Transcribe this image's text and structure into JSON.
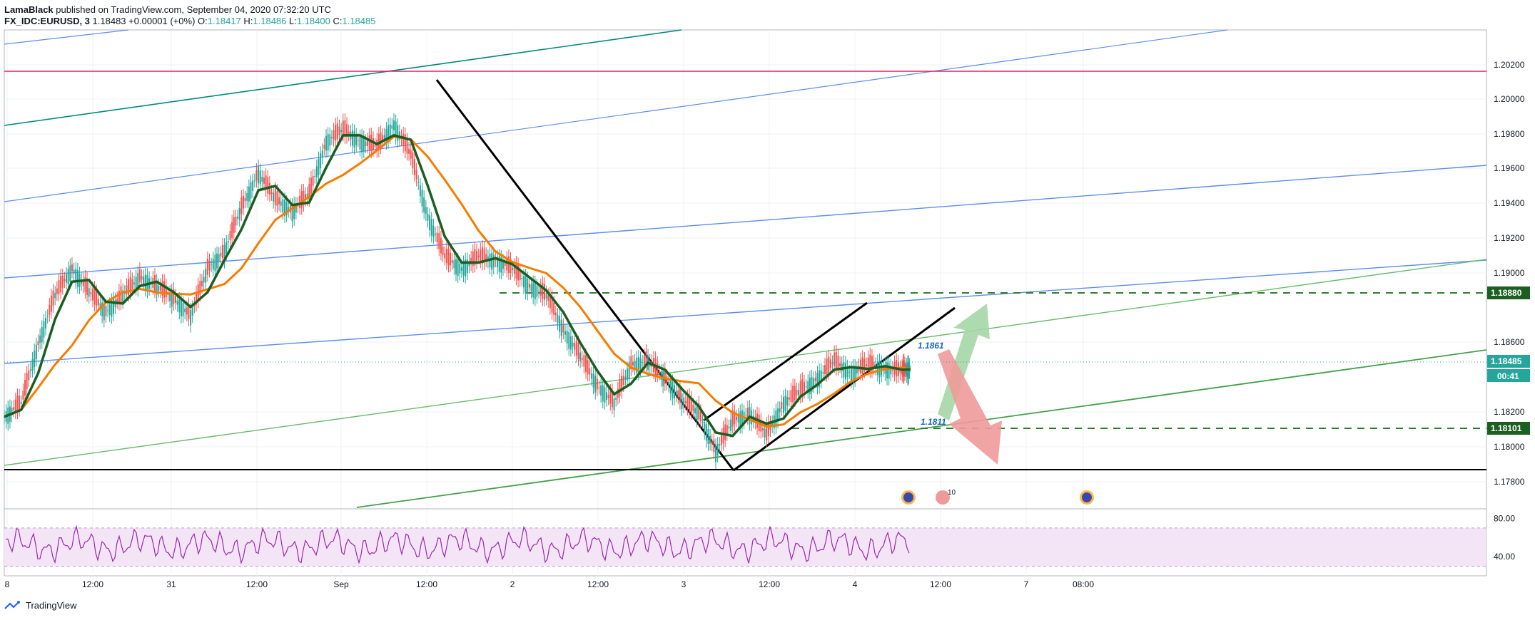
{
  "header": {
    "author": "LamaBlack",
    "published": " published on TradingView.com, September 04, 2020 07:32:20 UTC"
  },
  "ohlc": {
    "symbol": "FX_IDC:EURUSD, 3",
    "last": "1.18483",
    "change": "+0.00001 (+0%)",
    "o_label": "O:",
    "o": "1.18417",
    "h_label": "H:",
    "h": "1.18486",
    "l_label": "L:",
    "l": "1.18400",
    "c_label": "C:",
    "c": "1.18485"
  },
  "footer": {
    "brand": "TradingView"
  },
  "colors": {
    "up": "#26a69a",
    "ema_fast": "#1b5e20",
    "ema_mid": "#2196f3",
    "ema_slow": "#f57c00",
    "channel_blue": "#5b8def",
    "channel_green": "#66bb6a",
    "channel_teal": "#00897b",
    "magenta": "#e91e63",
    "rsi": "#9c27b0",
    "rsi_band": "#f3e5f5"
  },
  "chart_data": [
    {
      "type": "line",
      "series": [],
      "xlabel": "",
      "ylabel": "",
      "x_ticks": [
        "8",
        "12:00",
        "31",
        "12:00",
        "Sep",
        "12:00",
        "2",
        "12:00",
        "3",
        "12:00",
        "4",
        "12:00",
        "7",
        "08:00"
      ],
      "y_ticks": [
        "1.20200",
        "1.20000",
        "1.19800",
        "1.19600",
        "1.19400",
        "1.19200",
        "1.19000",
        "1.18880",
        "1.18600",
        "1.18485",
        "1.18200",
        "1.18101",
        "1.18000",
        "1.17800"
      ],
      "ylim": [
        1.1768,
        1.2042
      ],
      "price_series": [
        [
          0,
          1.182
        ],
        [
          2,
          1.1828
        ],
        [
          4,
          1.1862
        ],
        [
          6,
          1.189
        ],
        [
          8,
          1.1905
        ],
        [
          10,
          1.1892
        ],
        [
          12,
          1.188
        ],
        [
          14,
          1.189
        ],
        [
          16,
          1.19
        ],
        [
          18,
          1.1895
        ],
        [
          20,
          1.1888
        ],
        [
          22,
          1.1878
        ],
        [
          24,
          1.1905
        ],
        [
          26,
          1.1915
        ],
        [
          28,
          1.194
        ],
        [
          30,
          1.196
        ],
        [
          32,
          1.1945
        ],
        [
          34,
          1.1938
        ],
        [
          36,
          1.1948
        ],
        [
          38,
          1.1978
        ],
        [
          40,
          1.1985
        ],
        [
          42,
          1.1978
        ],
        [
          44,
          1.1975
        ],
        [
          46,
          1.1988
        ],
        [
          48,
          1.197
        ],
        [
          50,
          1.1935
        ],
        [
          52,
          1.1912
        ],
        [
          54,
          1.1905
        ],
        [
          56,
          1.1912
        ],
        [
          58,
          1.191
        ],
        [
          60,
          1.1905
        ],
        [
          62,
          1.1895
        ],
        [
          64,
          1.189
        ],
        [
          66,
          1.187
        ],
        [
          68,
          1.1855
        ],
        [
          70,
          1.1838
        ],
        [
          72,
          1.1828
        ],
        [
          74,
          1.185
        ],
        [
          76,
          1.1852
        ],
        [
          78,
          1.1842
        ],
        [
          80,
          1.183
        ],
        [
          82,
          1.1822
        ],
        [
          84,
          1.18
        ],
        [
          86,
          1.1818
        ],
        [
          88,
          1.1822
        ],
        [
          90,
          1.181
        ],
        [
          92,
          1.1828
        ],
        [
          94,
          1.1835
        ],
        [
          96,
          1.1842
        ],
        [
          98,
          1.1852
        ],
        [
          100,
          1.1845
        ],
        [
          102,
          1.185
        ],
        [
          104,
          1.1848
        ],
        [
          106,
          1.1846
        ],
        [
          107,
          1.18485
        ]
      ],
      "rsi_ylim": [
        20,
        90
      ],
      "rsi_ticks": [
        "80.00",
        "40.00"
      ],
      "annotations": [
        {
          "label": "1.1861",
          "price": 1.1861
        },
        {
          "label": "1.1811",
          "price": 1.1811
        },
        {
          "label": "00:41",
          "kind": "countdown"
        },
        {
          "label": "10",
          "kind": "event-count"
        }
      ]
    }
  ]
}
